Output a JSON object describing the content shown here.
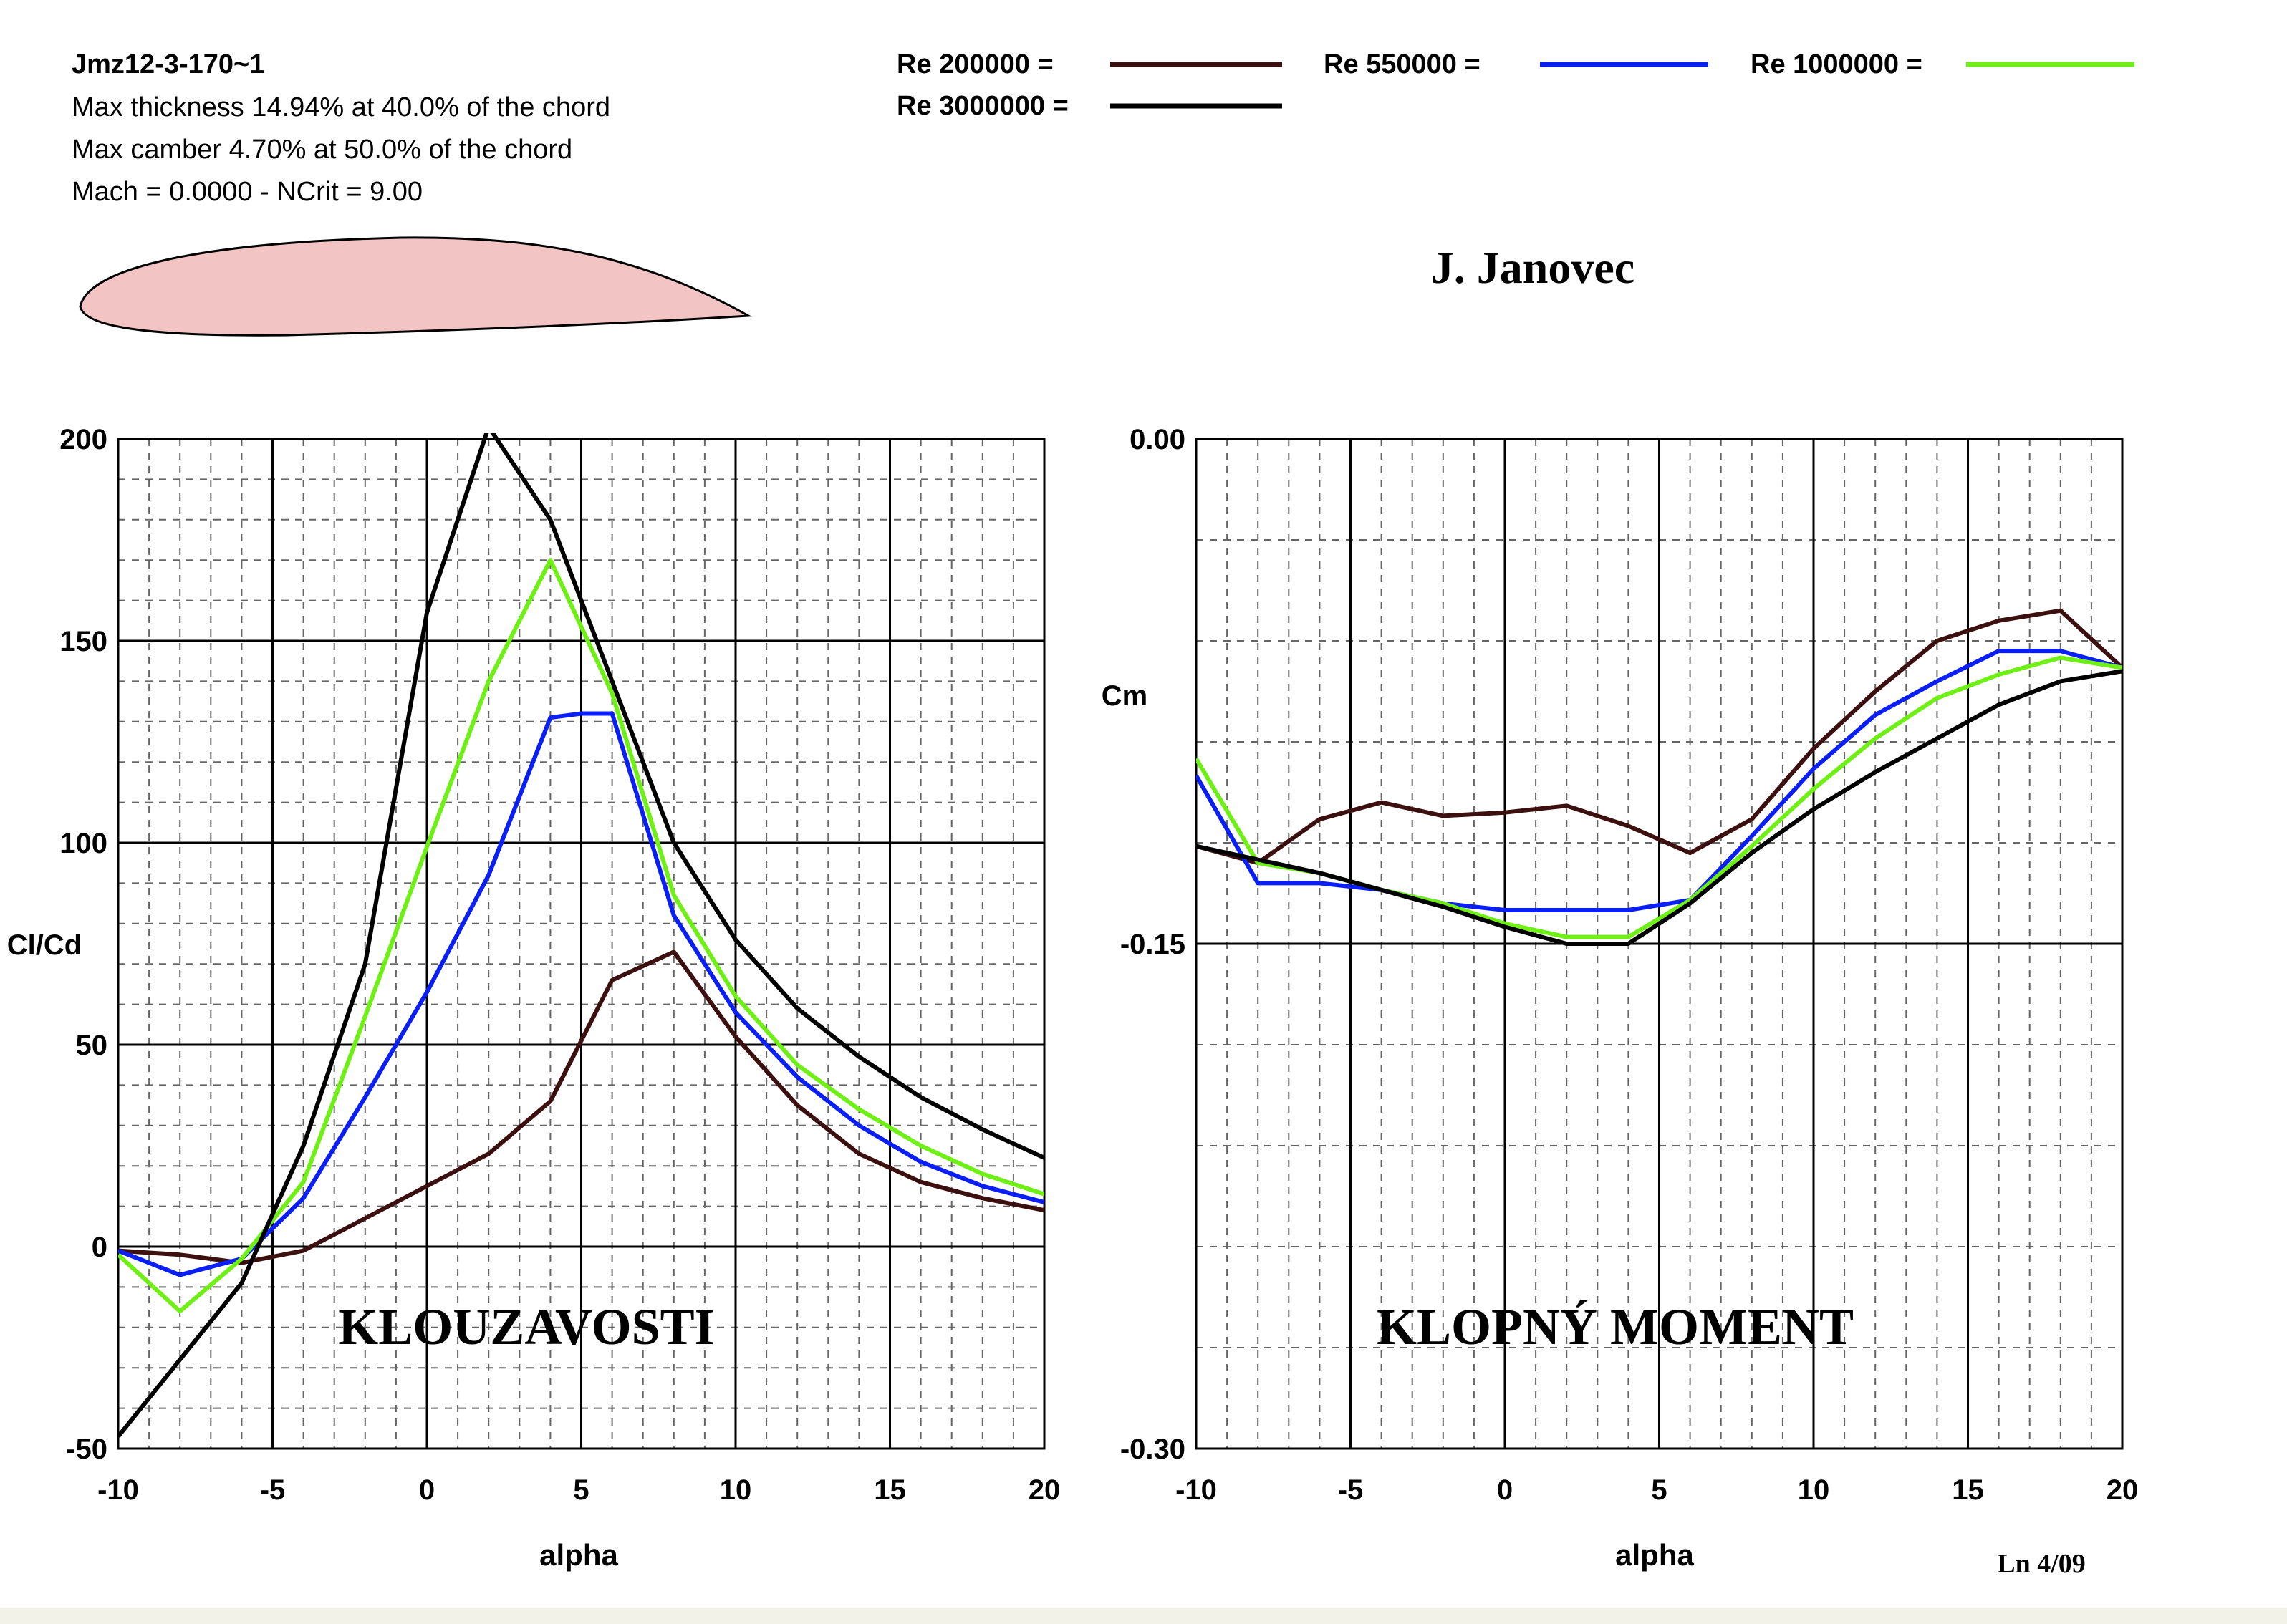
{
  "header": {
    "airfoil_name": "Jmz12-3-170~1",
    "thickness_line": "Max thickness 14.94% at 40.0% of the chord",
    "camber_line": "Max camber 4.70% at 50.0% of the chord",
    "conditions_line": "Mach = 0.0000 - NCrit = 9.00",
    "author": "J. Janovec",
    "footer_note": "Ln 4/09"
  },
  "colors": {
    "re_200000": "#3d1010",
    "re_550000": "#0a1ff5",
    "re_1000000": "#6ef014",
    "re_3000000": "#000000",
    "airfoil_fill": "#f2c4c4",
    "grid_major": "#000000",
    "grid_minor": "#666666"
  },
  "legend": [
    {
      "label": "Re 200000 =",
      "color": "#3d1010"
    },
    {
      "label": "Re 550000 =",
      "color": "#0a1ff5"
    },
    {
      "label": "Re 1000000 =",
      "color": "#6ef014"
    },
    {
      "label": "Re 3000000 =",
      "color": "#000000"
    }
  ],
  "chart_data": [
    {
      "type": "line",
      "title": "KLOUZAVOSTI",
      "xlabel": "alpha",
      "ylabel": "Cl/Cd",
      "xlim": [
        -10,
        20
      ],
      "ylim": [
        -50,
        200
      ],
      "xticks": [
        "-10",
        "-5",
        "0",
        "5",
        "10",
        "15",
        "20"
      ],
      "yticks": [
        "200",
        "150",
        "100",
        "50",
        "0",
        "-50"
      ],
      "grid": true,
      "series": [
        {
          "name": "Re 200000",
          "color": "#3d1010",
          "x": [
            -10,
            -8,
            -6,
            -4,
            -2,
            0,
            2,
            4,
            6,
            8,
            10,
            12,
            14,
            16,
            18,
            20
          ],
          "y": [
            -1,
            -2,
            -4,
            -1,
            7,
            15,
            23,
            36,
            66,
            73,
            52,
            35,
            23,
            16,
            12,
            9
          ]
        },
        {
          "name": "Re 550000",
          "color": "#0a1ff5",
          "x": [
            -10,
            -8,
            -6,
            -4,
            -2,
            0,
            2,
            4,
            5,
            6,
            8,
            10,
            12,
            14,
            16,
            18,
            20
          ],
          "y": [
            -1,
            -7,
            -3,
            12,
            37,
            63,
            92,
            131,
            132,
            132,
            82,
            58,
            42,
            30,
            21,
            15,
            11
          ]
        },
        {
          "name": "Re 1000000",
          "color": "#6ef014",
          "x": [
            -10,
            -8,
            -6,
            -4,
            -2,
            0,
            2,
            4,
            6,
            8,
            10,
            12,
            14,
            16,
            18,
            20
          ],
          "y": [
            -2,
            -16,
            -3,
            16,
            57,
            99,
            140,
            170,
            137,
            87,
            62,
            45,
            34,
            25,
            18,
            13
          ]
        },
        {
          "name": "Re 3000000",
          "color": "#000000",
          "x": [
            -10,
            -8,
            -6,
            -4,
            -2,
            0,
            2,
            4,
            6,
            8,
            10,
            12,
            14,
            16,
            18,
            20
          ],
          "y": [
            -47,
            -28,
            -9,
            25,
            70,
            157,
            203,
            180,
            140,
            100,
            76,
            59,
            47,
            37,
            29,
            22
          ]
        }
      ]
    },
    {
      "type": "line",
      "title": "KLOPNÝ MOMENT",
      "xlabel": "alpha",
      "ylabel": "Cm",
      "xlim": [
        -10,
        20
      ],
      "ylim": [
        -0.3,
        0
      ],
      "xticks": [
        "-10",
        "-5",
        "0",
        "5",
        "10",
        "15",
        "20"
      ],
      "yticks": [
        "0.00",
        "-0.15",
        "-0.30"
      ],
      "grid": true,
      "series": [
        {
          "name": "Re 200000",
          "color": "#3d1010",
          "x": [
            -10,
            -8,
            -6,
            -4,
            -2,
            0,
            2,
            4,
            6,
            8,
            10,
            12,
            14,
            16,
            18,
            20
          ],
          "y": [
            -0.121,
            -0.126,
            -0.113,
            -0.108,
            -0.112,
            -0.111,
            -0.109,
            -0.115,
            -0.123,
            -0.113,
            -0.092,
            -0.075,
            -0.06,
            -0.054,
            -0.051,
            -0.068
          ]
        },
        {
          "name": "Re 550000",
          "color": "#0a1ff5",
          "x": [
            -10,
            -8,
            -6,
            -4,
            -2,
            0,
            2,
            4,
            6,
            8,
            10,
            12,
            14,
            16,
            18,
            20
          ],
          "y": [
            -0.1,
            -0.132,
            -0.132,
            -0.134,
            -0.138,
            -0.14,
            -0.14,
            -0.14,
            -0.137,
            -0.118,
            -0.098,
            -0.082,
            -0.072,
            -0.063,
            -0.063,
            -0.068
          ]
        },
        {
          "name": "Re 1000000",
          "color": "#6ef014",
          "x": [
            -10,
            -8,
            -6,
            -4,
            -2,
            0,
            2,
            4,
            6,
            8,
            10,
            12,
            14,
            16,
            18,
            20
          ],
          "y": [
            -0.095,
            -0.126,
            -0.129,
            -0.134,
            -0.138,
            -0.144,
            -0.148,
            -0.148,
            -0.137,
            -0.121,
            -0.104,
            -0.089,
            -0.077,
            -0.07,
            -0.065,
            -0.068
          ]
        },
        {
          "name": "Re 3000000",
          "color": "#000000",
          "x": [
            -10,
            -8,
            -6,
            -4,
            -2,
            0,
            2,
            4,
            6,
            8,
            10,
            12,
            14,
            16,
            18,
            20
          ],
          "y": [
            -0.121,
            -0.125,
            -0.129,
            -0.134,
            -0.139,
            -0.145,
            -0.15,
            -0.15,
            -0.138,
            -0.123,
            -0.11,
            -0.099,
            -0.089,
            -0.079,
            -0.072,
            -0.069
          ]
        }
      ]
    }
  ]
}
